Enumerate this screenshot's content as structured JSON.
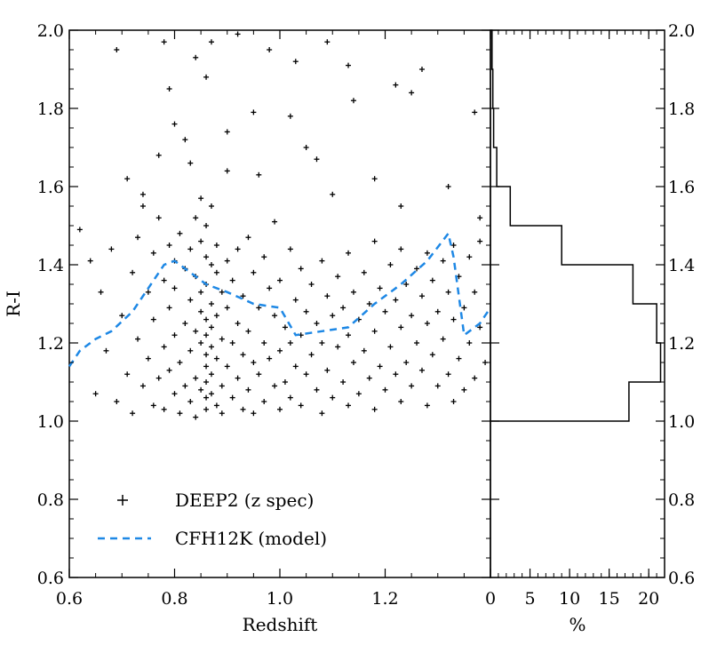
{
  "chart_data": [
    {
      "type": "scatter",
      "xlabel": "Redshift",
      "ylabel": "R-I",
      "xlim": [
        0.6,
        1.4
      ],
      "ylim": [
        0.6,
        2.0
      ],
      "x_ticks": [
        "0.6",
        "0.8",
        "1.0",
        "1.2"
      ],
      "x_tick_values": [
        0.6,
        0.8,
        1.0,
        1.2
      ],
      "y_ticks": [
        "0.6",
        "0.8",
        "1.0",
        "1.2",
        "1.4",
        "1.6",
        "1.8",
        "2.0"
      ],
      "y_tick_values": [
        0.6,
        0.8,
        1.0,
        1.2,
        1.4,
        1.6,
        1.8,
        2.0
      ],
      "legend_position": "bottom-left",
      "series": [
        {
          "name": "DEEP2 (z spec)",
          "marker": "plus",
          "color": "#000000",
          "points": [
            [
              0.62,
              1.49
            ],
            [
              0.64,
              1.41
            ],
            [
              0.65,
              1.07
            ],
            [
              0.66,
              1.33
            ],
            [
              0.67,
              1.18
            ],
            [
              0.68,
              1.44
            ],
            [
              0.69,
              1.05
            ],
            [
              0.69,
              1.95
            ],
            [
              0.7,
              1.27
            ],
            [
              0.71,
              1.12
            ],
            [
              0.71,
              1.62
            ],
            [
              0.72,
              1.38
            ],
            [
              0.72,
              1.02
            ],
            [
              0.73,
              1.47
            ],
            [
              0.73,
              1.21
            ],
            [
              0.74,
              1.55
            ],
            [
              0.74,
              1.09
            ],
            [
              0.75,
              1.33
            ],
            [
              0.75,
              1.16
            ],
            [
              0.76,
              1.43
            ],
            [
              0.76,
              1.04
            ],
            [
              0.76,
              1.26
            ],
            [
              0.77,
              1.52
            ],
            [
              0.77,
              1.11
            ],
            [
              0.77,
              1.68
            ],
            [
              0.78,
              1.36
            ],
            [
              0.78,
              1.19
            ],
            [
              0.78,
              1.03
            ],
            [
              0.79,
              1.45
            ],
            [
              0.79,
              1.29
            ],
            [
              0.79,
              1.13
            ],
            [
              0.79,
              1.85
            ],
            [
              0.8,
              1.41
            ],
            [
              0.8,
              1.07
            ],
            [
              0.8,
              1.22
            ],
            [
              0.8,
              1.34
            ],
            [
              0.81,
              1.48
            ],
            [
              0.81,
              1.15
            ],
            [
              0.81,
              1.02
            ],
            [
              0.82,
              1.39
            ],
            [
              0.82,
              1.25
            ],
            [
              0.82,
              1.09
            ],
            [
              0.82,
              1.72
            ],
            [
              0.83,
              1.44
            ],
            [
              0.83,
              1.31
            ],
            [
              0.83,
              1.18
            ],
            [
              0.83,
              1.05
            ],
            [
              0.84,
              1.52
            ],
            [
              0.84,
              1.37
            ],
            [
              0.84,
              1.23
            ],
            [
              0.84,
              1.11
            ],
            [
              0.84,
              1.01
            ],
            [
              0.85,
              1.46
            ],
            [
              0.85,
              1.33
            ],
            [
              0.85,
              1.2
            ],
            [
              0.85,
              1.08
            ],
            [
              0.85,
              1.57
            ],
            [
              0.85,
              1.28
            ],
            [
              0.86,
              1.42
            ],
            [
              0.86,
              1.35
            ],
            [
              0.86,
              1.26
            ],
            [
              0.86,
              1.17
            ],
            [
              0.86,
              1.1
            ],
            [
              0.86,
              1.03
            ],
            [
              0.86,
              1.5
            ],
            [
              0.86,
              1.22
            ],
            [
              0.86,
              1.14
            ],
            [
              0.86,
              1.06
            ],
            [
              0.86,
              1.88
            ],
            [
              0.87,
              1.4
            ],
            [
              0.87,
              1.3
            ],
            [
              0.87,
              1.19
            ],
            [
              0.87,
              1.07
            ],
            [
              0.87,
              1.55
            ],
            [
              0.87,
              1.24
            ],
            [
              0.87,
              1.12
            ],
            [
              0.88,
              1.38
            ],
            [
              0.88,
              1.27
            ],
            [
              0.88,
              1.16
            ],
            [
              0.88,
              1.04
            ],
            [
              0.88,
              1.45
            ],
            [
              0.89,
              1.33
            ],
            [
              0.89,
              1.21
            ],
            [
              0.89,
              1.09
            ],
            [
              0.89,
              1.02
            ],
            [
              0.9,
              1.41
            ],
            [
              0.9,
              1.29
            ],
            [
              0.9,
              1.14
            ],
            [
              0.9,
              1.64
            ],
            [
              0.91,
              1.36
            ],
            [
              0.91,
              1.2
            ],
            [
              0.91,
              1.06
            ],
            [
              0.92,
              1.44
            ],
            [
              0.92,
              1.25
            ],
            [
              0.92,
              1.11
            ],
            [
              0.93,
              1.32
            ],
            [
              0.93,
              1.17
            ],
            [
              0.93,
              1.03
            ],
            [
              0.94,
              1.47
            ],
            [
              0.94,
              1.23
            ],
            [
              0.94,
              1.08
            ],
            [
              0.95,
              1.38
            ],
            [
              0.95,
              1.15
            ],
            [
              0.95,
              1.02
            ],
            [
              0.95,
              1.79
            ],
            [
              0.96,
              1.29
            ],
            [
              0.96,
              1.12
            ],
            [
              0.97,
              1.42
            ],
            [
              0.97,
              1.2
            ],
            [
              0.97,
              1.05
            ],
            [
              0.98,
              1.34
            ],
            [
              0.98,
              1.16
            ],
            [
              0.99,
              1.27
            ],
            [
              0.99,
              1.09
            ],
            [
              0.99,
              1.51
            ],
            [
              1.0,
              1.36
            ],
            [
              1.0,
              1.18
            ],
            [
              1.0,
              1.03
            ],
            [
              1.01,
              1.24
            ],
            [
              1.01,
              1.1
            ],
            [
              1.02,
              1.44
            ],
            [
              1.02,
              1.2
            ],
            [
              1.02,
              1.06
            ],
            [
              1.03,
              1.31
            ],
            [
              1.03,
              1.14
            ],
            [
              1.04,
              1.39
            ],
            [
              1.04,
              1.22
            ],
            [
              1.04,
              1.04
            ],
            [
              1.05,
              1.28
            ],
            [
              1.05,
              1.12
            ],
            [
              1.05,
              1.7
            ],
            [
              1.06,
              1.35
            ],
            [
              1.06,
              1.17
            ],
            [
              1.07,
              1.25
            ],
            [
              1.07,
              1.08
            ],
            [
              1.08,
              1.41
            ],
            [
              1.08,
              1.2
            ],
            [
              1.08,
              1.02
            ],
            [
              1.09,
              1.32
            ],
            [
              1.09,
              1.13
            ],
            [
              1.1,
              1.27
            ],
            [
              1.1,
              1.06
            ],
            [
              1.1,
              1.58
            ],
            [
              1.11,
              1.37
            ],
            [
              1.11,
              1.19
            ],
            [
              1.12,
              1.29
            ],
            [
              1.12,
              1.1
            ],
            [
              1.13,
              1.43
            ],
            [
              1.13,
              1.22
            ],
            [
              1.13,
              1.04
            ],
            [
              1.14,
              1.33
            ],
            [
              1.14,
              1.15
            ],
            [
              1.15,
              1.26
            ],
            [
              1.15,
              1.07
            ],
            [
              1.16,
              1.38
            ],
            [
              1.16,
              1.18
            ],
            [
              1.17,
              1.3
            ],
            [
              1.17,
              1.11
            ],
            [
              1.18,
              1.46
            ],
            [
              1.18,
              1.23
            ],
            [
              1.18,
              1.03
            ],
            [
              1.19,
              1.34
            ],
            [
              1.19,
              1.14
            ],
            [
              1.2,
              1.28
            ],
            [
              1.2,
              1.08
            ],
            [
              1.21,
              1.4
            ],
            [
              1.21,
              1.19
            ],
            [
              1.22,
              1.31
            ],
            [
              1.22,
              1.12
            ],
            [
              1.23,
              1.44
            ],
            [
              1.23,
              1.24
            ],
            [
              1.23,
              1.05
            ],
            [
              1.24,
              1.35
            ],
            [
              1.24,
              1.15
            ],
            [
              1.25,
              1.27
            ],
            [
              1.25,
              1.09
            ],
            [
              1.26,
              1.39
            ],
            [
              1.26,
              1.2
            ],
            [
              1.27,
              1.32
            ],
            [
              1.27,
              1.13
            ],
            [
              1.28,
              1.43
            ],
            [
              1.28,
              1.25
            ],
            [
              1.28,
              1.04
            ],
            [
              1.29,
              1.36
            ],
            [
              1.29,
              1.17
            ],
            [
              1.3,
              1.28
            ],
            [
              1.3,
              1.09
            ],
            [
              1.31,
              1.41
            ],
            [
              1.31,
              1.21
            ],
            [
              1.32,
              1.33
            ],
            [
              1.32,
              1.12
            ],
            [
              1.33,
              1.45
            ],
            [
              1.33,
              1.26
            ],
            [
              1.33,
              1.05
            ],
            [
              1.34,
              1.37
            ],
            [
              1.34,
              1.16
            ],
            [
              1.35,
              1.29
            ],
            [
              1.35,
              1.08
            ],
            [
              1.36,
              1.42
            ],
            [
              1.36,
              1.2
            ],
            [
              1.37,
              1.33
            ],
            [
              1.37,
              1.11
            ],
            [
              1.38,
              1.46
            ],
            [
              1.38,
              1.24
            ],
            [
              1.39,
              1.15
            ],
            [
              0.78,
              1.97
            ],
            [
              0.84,
              1.93
            ],
            [
              0.87,
              1.97
            ],
            [
              0.92,
              1.99
            ],
            [
              0.98,
              1.95
            ],
            [
              1.03,
              1.92
            ],
            [
              1.09,
              1.97
            ],
            [
              1.13,
              1.91
            ],
            [
              1.22,
              1.86
            ],
            [
              1.27,
              1.9
            ],
            [
              0.8,
              1.76
            ],
            [
              0.9,
              1.74
            ],
            [
              1.02,
              1.78
            ],
            [
              1.14,
              1.82
            ],
            [
              1.25,
              1.84
            ],
            [
              1.37,
              1.79
            ],
            [
              0.83,
              1.66
            ],
            [
              0.96,
              1.63
            ],
            [
              1.07,
              1.67
            ],
            [
              1.18,
              1.62
            ],
            [
              1.32,
              1.6
            ],
            [
              0.74,
              1.58
            ],
            [
              1.23,
              1.55
            ],
            [
              1.38,
              1.52
            ]
          ]
        },
        {
          "name": "CFH12K (model)",
          "line_style": "dashed",
          "color": "#1e88e5",
          "x": [
            0.6,
            0.62,
            0.65,
            0.68,
            0.72,
            0.75,
            0.78,
            0.8,
            0.83,
            0.86,
            0.9,
            0.95,
            1.0,
            1.03,
            1.08,
            1.13,
            1.18,
            1.23,
            1.28,
            1.32,
            1.33,
            1.35,
            1.38,
            1.4
          ],
          "y": [
            1.14,
            1.18,
            1.21,
            1.23,
            1.28,
            1.34,
            1.4,
            1.41,
            1.38,
            1.35,
            1.33,
            1.3,
            1.29,
            1.22,
            1.23,
            1.24,
            1.3,
            1.35,
            1.41,
            1.48,
            1.42,
            1.22,
            1.25,
            1.29
          ]
        }
      ]
    },
    {
      "type": "histogram",
      "xlabel": "%",
      "xlim": [
        0,
        22
      ],
      "ylim": [
        0.6,
        2.0
      ],
      "x_ticks": [
        "0",
        "5",
        "10",
        "15",
        "20"
      ],
      "x_tick_values": [
        0,
        5,
        10,
        15,
        20
      ],
      "y_ticks": [
        "0.6",
        "0.8",
        "1.0",
        "1.2",
        "1.4",
        "1.6",
        "1.8",
        "2.0"
      ],
      "y_tick_values": [
        0.6,
        0.8,
        1.0,
        1.2,
        1.4,
        1.6,
        1.8,
        2.0
      ],
      "bins": [
        {
          "y_low": 1.0,
          "y_high": 1.1,
          "percent": 17.5
        },
        {
          "y_low": 1.1,
          "y_high": 1.2,
          "percent": 21.5
        },
        {
          "y_low": 1.2,
          "y_high": 1.3,
          "percent": 21.0
        },
        {
          "y_low": 1.3,
          "y_high": 1.4,
          "percent": 18.0
        },
        {
          "y_low": 1.4,
          "y_high": 1.5,
          "percent": 9.0
        },
        {
          "y_low": 1.5,
          "y_high": 1.6,
          "percent": 2.5
        },
        {
          "y_low": 1.6,
          "y_high": 1.7,
          "percent": 0.8
        },
        {
          "y_low": 1.7,
          "y_high": 1.8,
          "percent": 0.4
        },
        {
          "y_low": 1.8,
          "y_high": 1.9,
          "percent": 0.3
        },
        {
          "y_low": 1.9,
          "y_high": 2.0,
          "percent": 0.2
        }
      ]
    }
  ]
}
